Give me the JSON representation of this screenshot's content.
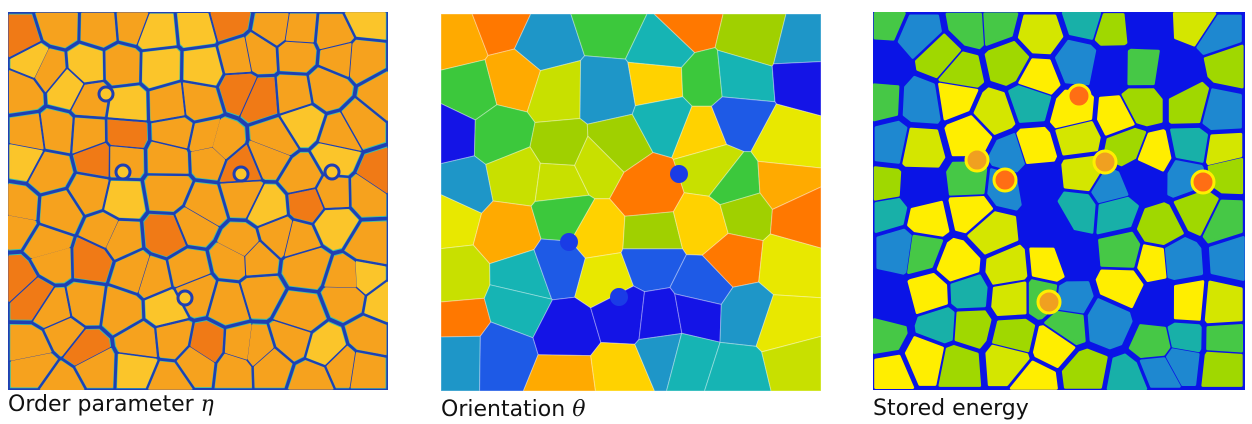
{
  "panels": [
    {
      "caption": "Order parameter",
      "symbol": "η",
      "field": "order-parameter",
      "colors": {
        "grain": "#f6a21e",
        "grain_light": "#fbc52a",
        "grain_hot": "#f07a16",
        "boundary": "#1f3fb3",
        "halo": "#3cc0a8"
      }
    },
    {
      "caption": "Orientation",
      "symbol": "θ",
      "field": "orientation",
      "colors": {
        "palette": [
          "#e8e800",
          "#c8e000",
          "#a0d000",
          "#3cc83c",
          "#16b4b4",
          "#1e96c8",
          "#1e5ae6",
          "#1414e6",
          "#ffd200",
          "#ffaa00",
          "#ff7800"
        ]
      }
    },
    {
      "caption": "Stored energy",
      "symbol": "",
      "field": "stored-energy",
      "colors": {
        "background": "#0a14e6",
        "palette": [
          "#ffee00",
          "#d4e600",
          "#a0d800",
          "#46c846",
          "#18b0a8",
          "#1e88d0",
          "#f0a020",
          "#ff6e14"
        ]
      }
    }
  ]
}
